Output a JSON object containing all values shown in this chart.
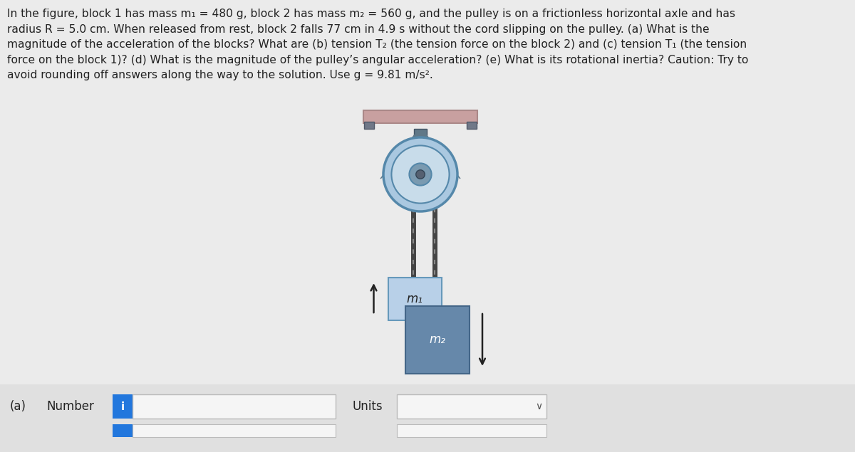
{
  "background_color": "#ebebeb",
  "text_color": "#222222",
  "paragraph_text": "In the figure, block 1 has mass m₁ = 480 g, block 2 has mass m₂ = 560 g, and the pulley is on a frictionless horizontal axle and has\nradius R = 5.0 cm. When released from rest, block 2 falls 77 cm in 4.9 s without the cord slipping on the pulley. (a) What is the\nmagnitude of the acceleration of the blocks? What are (b) tension T₂ (the tension force on the block 2) and (c) tension T₁ (the tension\nforce on the block 1)? (d) What is the magnitude of the pulley’s angular acceleration? (e) What is its rotational inertia? Caution: Try to\navoid rounding off answers along the way to the solution. Use g = 9.81 m/s².",
  "label_a": "(a)",
  "label_number": "Number",
  "label_units": "Units",
  "label_i": "i",
  "m1_label": "m₁",
  "m2_label": "m₂",
  "pulley_outer_color": "#aac8e0",
  "pulley_outer_edge": "#5588aa",
  "pulley_inner_color": "#c8dcea",
  "pulley_hub_color": "#7a9ab0",
  "pulley_center_color": "#556070",
  "pulley_bracket_color": "#607888",
  "pulley_bracket_edge": "#445566",
  "block1_color": "#b8d0e8",
  "block1_border": "#6699bb",
  "block2_color": "#6688aa",
  "block2_border": "#446688",
  "rope_color": "#444444",
  "ceiling_color": "#c8a0a0",
  "ceiling_border": "#aa8888",
  "ceiling_mount_color": "#707888",
  "ceiling_mount_edge": "#505868",
  "arrow_color": "#222222",
  "input_box_color": "#f5f5f5",
  "input_border_color": "#bbbbbb",
  "info_button_color": "#2277dd",
  "ui_bg": "#e0e0e0"
}
